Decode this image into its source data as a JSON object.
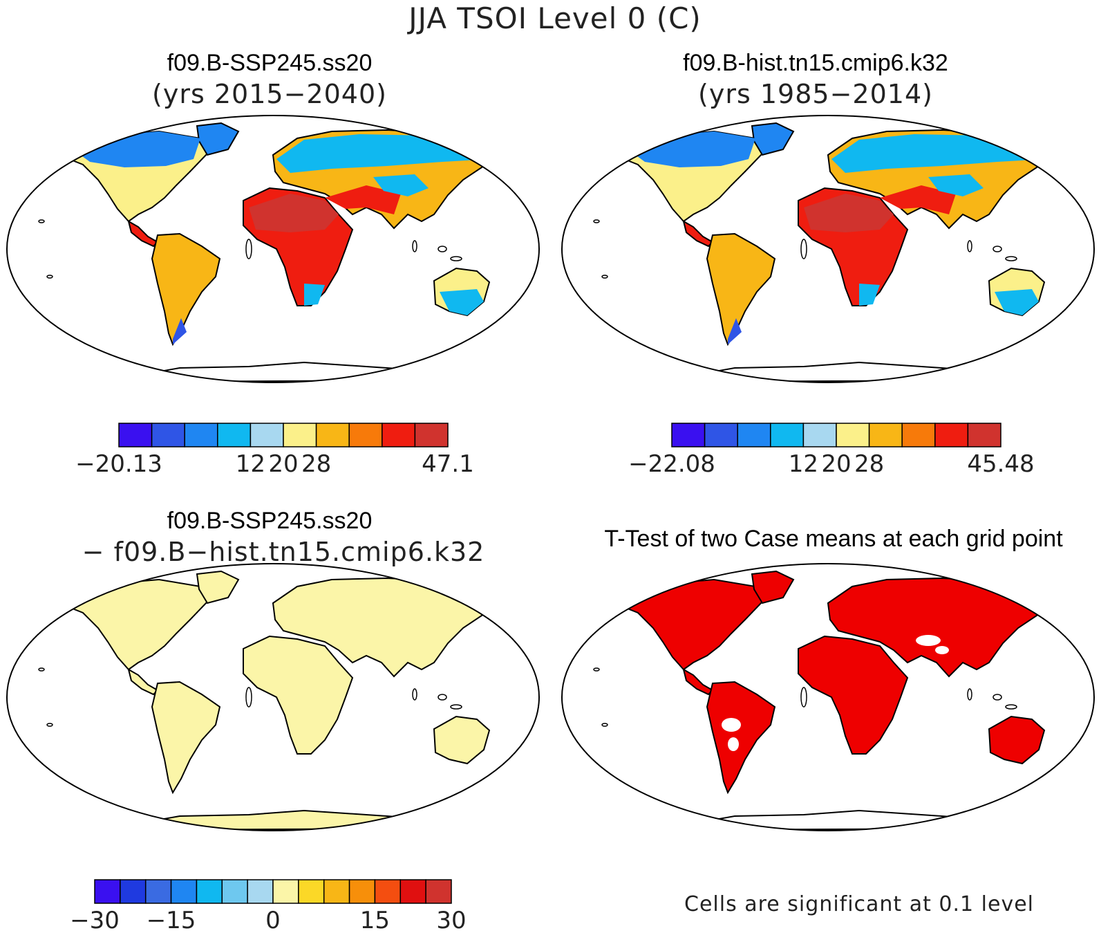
{
  "figure": {
    "title": "JJA TSOI Level 0 (C)"
  },
  "panels": [
    {
      "id": "ssp245",
      "title": "f09.B-SSP245.ss20",
      "subtitle": "(yrs 2015−2040)",
      "map_style": "climatology"
    },
    {
      "id": "hist",
      "title": "f09.B-hist.tn15.cmip6.k32",
      "subtitle": "(yrs 1985−2014)",
      "map_style": "climatology"
    },
    {
      "id": "diff",
      "title": "f09.B-SSP245.ss20",
      "subtitle": "− f09.B−hist.tn15.cmip6.k32",
      "map_style": "difference"
    },
    {
      "id": "ttest",
      "title": "T-Test of two Case means at each grid point",
      "subtitle": "",
      "map_style": "significance",
      "note": "Cells are significant at 0.1 level"
    }
  ],
  "colorbars": [
    {
      "id": "cb1",
      "colors": [
        "#3a10f0",
        "#2f55e6",
        "#1f86f2",
        "#10b8f0",
        "#a8d8f0",
        "#fbf08a",
        "#f8b616",
        "#f77a0a",
        "#ef1d10",
        "#d0332e"
      ],
      "labels": [
        "−20.13",
        "12",
        "20",
        "28",
        "47.1"
      ],
      "label_boundaries": [
        0,
        4,
        5,
        6,
        10
      ]
    },
    {
      "id": "cb2",
      "colors": [
        "#3a10f0",
        "#2f55e6",
        "#1f86f2",
        "#10b8f0",
        "#a8d8f0",
        "#fbf08a",
        "#f8b616",
        "#f77a0a",
        "#ef1d10",
        "#d0332e"
      ],
      "labels": [
        "−22.08",
        "12",
        "20",
        "28",
        "45.48"
      ],
      "label_boundaries": [
        0,
        4,
        5,
        6,
        10
      ]
    },
    {
      "id": "cb3",
      "colors": [
        "#3a10f0",
        "#1f3ae0",
        "#3a6be2",
        "#1f86f2",
        "#10b8f0",
        "#6ec8ef",
        "#a8d8f0",
        "#fbf5a8",
        "#fbd827",
        "#f8b616",
        "#f78f0a",
        "#f44e10",
        "#e01010",
        "#d0332e"
      ],
      "labels": [
        "−30",
        "−15",
        "0",
        "15",
        "30"
      ],
      "label_boundaries": [
        0,
        3,
        7,
        11,
        14
      ]
    }
  ],
  "map_colors": {
    "outline": "#000000",
    "diff_fill": "#fbf5a8",
    "signif_fill": "#ee0000",
    "clim_bands": [
      "#1f86f2",
      "#10b8f0",
      "#fbf08a",
      "#f8b616",
      "#ef1d10",
      "#d0332e"
    ]
  }
}
